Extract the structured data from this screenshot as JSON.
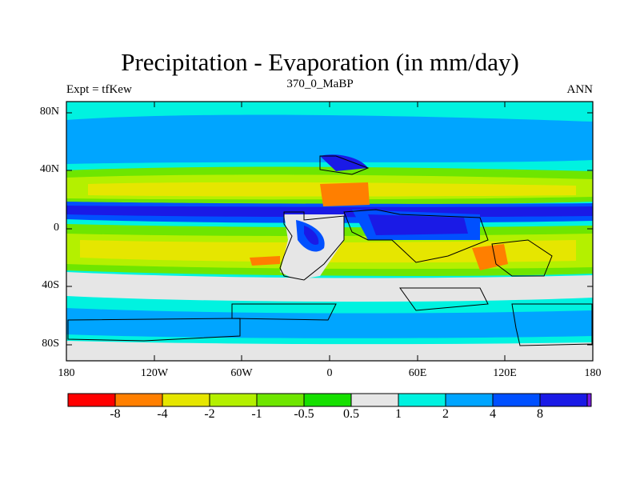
{
  "figure": {
    "title": "Precipitation - Evaporation (in mm/day)",
    "subtitle": "370_0_MaBP",
    "left_label": "Expt = tfKew",
    "right_label": "ANN"
  },
  "axes": {
    "lat_ticks": [
      "80N",
      "40N",
      "0",
      "40S",
      "80S"
    ],
    "lon_ticks": [
      "180",
      "120W",
      "60W",
      "0",
      "60E",
      "120E",
      "180"
    ]
  },
  "colorbar": {
    "labels": [
      "-8",
      "-4",
      "-2",
      "-1",
      "-0.5",
      "0.5",
      "1",
      "2",
      "4",
      "8"
    ],
    "colors": [
      "#ff0000",
      "#ff7f00",
      "#e6e600",
      "#b4f000",
      "#6ee600",
      "#16e000",
      "#e6e6e6",
      "#00f2e0",
      "#00a5ff",
      "#0050ff",
      "#1a1ae6",
      "#7a1ae6"
    ]
  }
}
